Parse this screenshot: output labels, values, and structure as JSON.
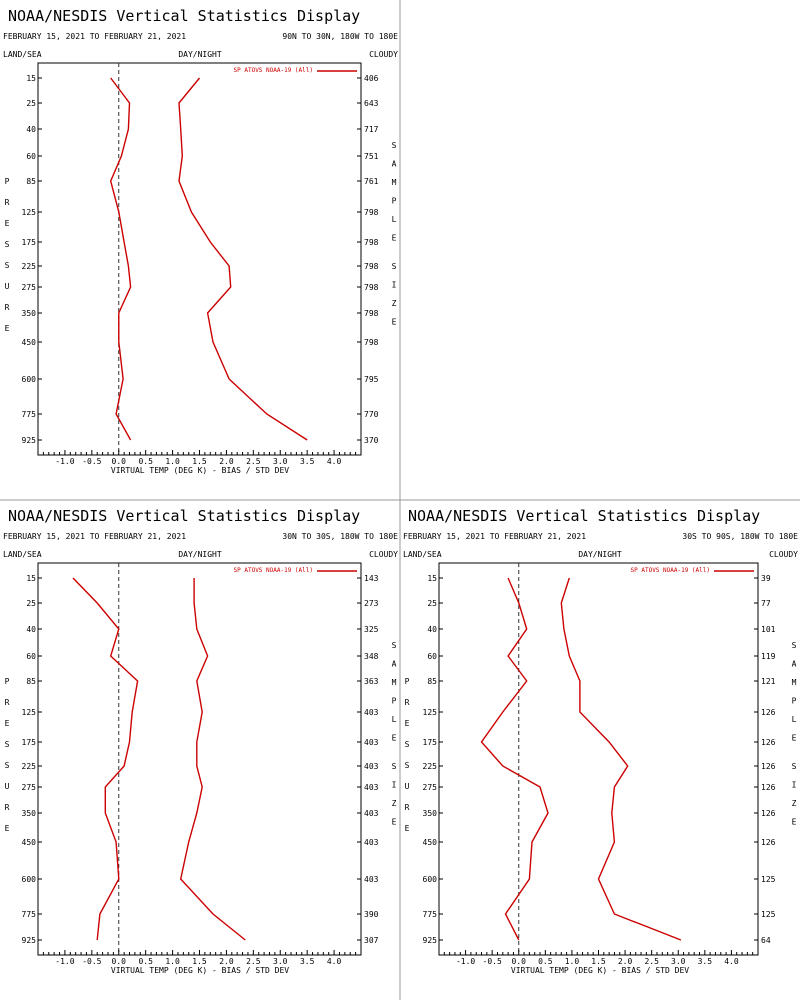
{
  "colors": {
    "series": "#cc0000",
    "axis": "#000000",
    "zero_line": "#333333",
    "divider": "#999999"
  },
  "panels": [
    {
      "title": "NOAA/NESDIS Vertical Statistics Display",
      "date_range": "FEBRUARY 15, 2021 TO FEBRUARY 21, 2021",
      "region": "90N TO 30N, 180W TO 180E",
      "land_sea": "LAND/SEA",
      "day_night": "DAY/NIGHT",
      "cloudy": "CLOUDY",
      "y_title": "PRESSURE",
      "right_title": "SAMPLE SIZE",
      "x_label": "VIRTUAL TEMP (DEG K) - BIAS / STD DEV",
      "legend_label": "SP ATOVS NOAA-19 (All)",
      "sample_sizes": [
        "406",
        "643",
        "717",
        "751",
        "761",
        "798",
        "798",
        "798",
        "798",
        "798",
        "798",
        "795",
        "770",
        "370"
      ]
    },
    {
      "title": "NOAA/NESDIS Vertical Statistics Display",
      "date_range": "FEBRUARY 15, 2021 TO FEBRUARY 21, 2021",
      "region": "30N TO 30S, 180W TO 180E",
      "land_sea": "LAND/SEA",
      "day_night": "DAY/NIGHT",
      "cloudy": "CLOUDY",
      "y_title": "PRESSURE",
      "right_title": "SAMPLE SIZE",
      "x_label": "VIRTUAL TEMP (DEG K) - BIAS / STD DEV",
      "legend_label": "SP ATOVS NOAA-19 (All)",
      "sample_sizes": [
        "143",
        "273",
        "325",
        "348",
        "363",
        "403",
        "403",
        "403",
        "403",
        "403",
        "403",
        "403",
        "390",
        "307"
      ]
    },
    {
      "title": "NOAA/NESDIS Vertical Statistics Display",
      "date_range": "FEBRUARY 15, 2021 TO FEBRUARY 21, 2021",
      "region": "30S TO 90S, 180W TO 180E",
      "land_sea": "LAND/SEA",
      "day_night": "DAY/NIGHT",
      "cloudy": "CLOUDY",
      "y_title": "PRESSURE",
      "right_title": "SAMPLE SIZE",
      "x_label": "VIRTUAL TEMP (DEG K) - BIAS / STD DEV",
      "legend_label": "SP ATOVS NOAA-19 (All)",
      "sample_sizes": [
        "39",
        "77",
        "101",
        "119",
        "121",
        "126",
        "126",
        "126",
        "126",
        "126",
        "126",
        "125",
        "125",
        "64"
      ]
    }
  ],
  "chart_data": [
    {
      "type": "line",
      "title": "NOAA/NESDIS Vertical Statistics Display",
      "subtitle": "FEBRUARY 15, 2021 TO FEBRUARY 21, 2021 — 90N TO 30N, 180W TO 180E",
      "xlabel": "VIRTUAL TEMP (DEG K) - BIAS / STD DEV",
      "ylabel": "PRESSURE",
      "xlim": [
        -1.5,
        4.5
      ],
      "x_ticks": [
        "-1.0",
        "-0.5",
        "0.0",
        "0.5",
        "1.0",
        "1.5",
        "2.0",
        "2.5",
        "3.0",
        "3.5",
        "4.0"
      ],
      "pressure_levels": [
        "15",
        "25",
        "40",
        "60",
        "85",
        "125",
        "175",
        "225",
        "275",
        "350",
        "450",
        "600",
        "775",
        "925"
      ],
      "legend": "top-right",
      "series": [
        {
          "name": "SP ATOVS NOAA-19 (All)",
          "role": "bias",
          "values": [
            -0.15,
            0.2,
            0.18,
            0.05,
            -0.15,
            0.0,
            0.1,
            0.18,
            0.22,
            0.0,
            0.0,
            0.08,
            -0.05,
            0.22
          ]
        },
        {
          "name": "SP ATOVS NOAA-19 (All)",
          "role": "std_dev",
          "values": [
            1.5,
            1.12,
            1.15,
            1.18,
            1.12,
            1.35,
            1.7,
            2.05,
            2.08,
            1.65,
            1.75,
            2.05,
            2.75,
            3.5
          ]
        }
      ]
    },
    {
      "type": "line",
      "title": "NOAA/NESDIS Vertical Statistics Display",
      "subtitle": "FEBRUARY 15, 2021 TO FEBRUARY 21, 2021 — 30N TO 30S, 180W TO 180E",
      "xlabel": "VIRTUAL TEMP (DEG K) - BIAS / STD DEV",
      "ylabel": "PRESSURE",
      "xlim": [
        -1.5,
        4.5
      ],
      "x_ticks": [
        "-1.0",
        "-0.5",
        "0.0",
        "0.5",
        "1.0",
        "1.5",
        "2.0",
        "2.5",
        "3.0",
        "3.5",
        "4.0"
      ],
      "pressure_levels": [
        "15",
        "25",
        "40",
        "60",
        "85",
        "125",
        "175",
        "225",
        "275",
        "350",
        "450",
        "600",
        "775",
        "925"
      ],
      "legend": "top-right",
      "series": [
        {
          "name": "SP ATOVS NOAA-19 (All)",
          "role": "bias",
          "values": [
            -0.85,
            -0.4,
            0.0,
            -0.15,
            0.35,
            0.25,
            0.2,
            0.1,
            -0.25,
            -0.25,
            -0.05,
            0.0,
            -0.35,
            -0.4
          ]
        },
        {
          "name": "SP ATOVS NOAA-19 (All)",
          "role": "std_dev",
          "values": [
            1.4,
            1.4,
            1.45,
            1.65,
            1.45,
            1.55,
            1.45,
            1.45,
            1.55,
            1.45,
            1.3,
            1.15,
            1.75,
            2.35
          ]
        }
      ]
    },
    {
      "type": "line",
      "title": "NOAA/NESDIS Vertical Statistics Display",
      "subtitle": "FEBRUARY 15, 2021 TO FEBRUARY 21, 2021 — 30S TO 90S, 180W TO 180E",
      "xlabel": "VIRTUAL TEMP (DEG K) - BIAS / STD DEV",
      "ylabel": "PRESSURE",
      "xlim": [
        -1.5,
        4.5
      ],
      "x_ticks": [
        "-1.0",
        "-0.5",
        "0.0",
        "0.5",
        "1.0",
        "1.5",
        "2.0",
        "2.5",
        "3.0",
        "3.5",
        "4.0"
      ],
      "pressure_levels": [
        "15",
        "25",
        "40",
        "60",
        "85",
        "125",
        "175",
        "225",
        "275",
        "350",
        "450",
        "600",
        "775",
        "925"
      ],
      "legend": "top-right",
      "series": [
        {
          "name": "SP ATOVS NOAA-19 (All)",
          "role": "bias",
          "values": [
            -0.2,
            0.0,
            0.15,
            -0.2,
            0.15,
            -0.3,
            -0.7,
            -0.3,
            0.4,
            0.55,
            0.25,
            0.2,
            -0.25,
            0.0
          ]
        },
        {
          "name": "SP ATOVS NOAA-19 (All)",
          "role": "std_dev",
          "values": [
            0.95,
            0.8,
            0.85,
            0.95,
            1.15,
            1.15,
            1.7,
            2.05,
            1.8,
            1.75,
            1.8,
            1.5,
            1.8,
            3.05
          ]
        }
      ]
    }
  ]
}
